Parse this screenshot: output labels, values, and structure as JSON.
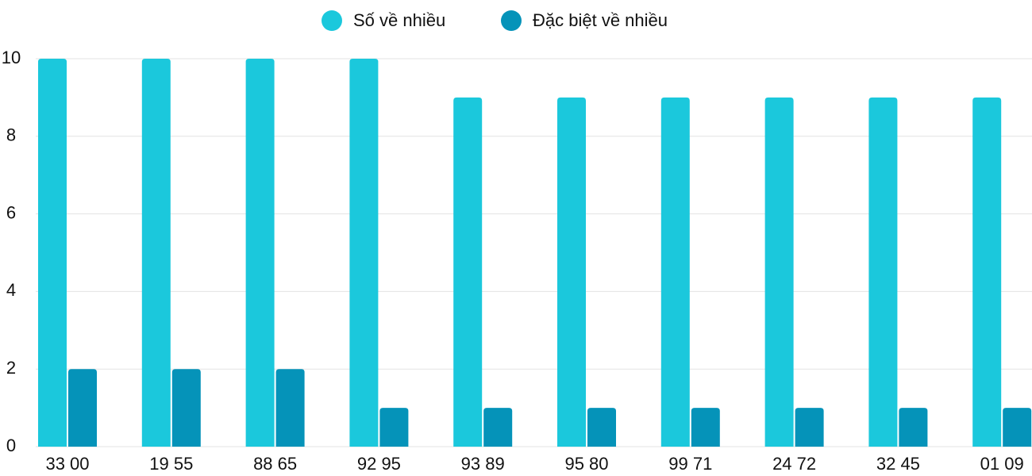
{
  "chart_data": {
    "type": "bar",
    "categories": [
      "33 00",
      "19 55",
      "88 65",
      "92 95",
      "93 89",
      "95 80",
      "99 71",
      "24 72",
      "32 45",
      "01 09"
    ],
    "series": [
      {
        "name": "Số về nhiều",
        "color": "#1bc8dc",
        "values": [
          10,
          10,
          10,
          10,
          9,
          9,
          9,
          9,
          9,
          9
        ]
      },
      {
        "name": "Đặc biệt về nhiều",
        "color": "#0593b9",
        "values": [
          2,
          2,
          2,
          1,
          1,
          1,
          1,
          1,
          1,
          1
        ]
      }
    ],
    "ylim": [
      0,
      10
    ],
    "yticks": [
      0,
      2,
      4,
      6,
      8,
      10
    ],
    "grid": true,
    "legend": "top"
  }
}
